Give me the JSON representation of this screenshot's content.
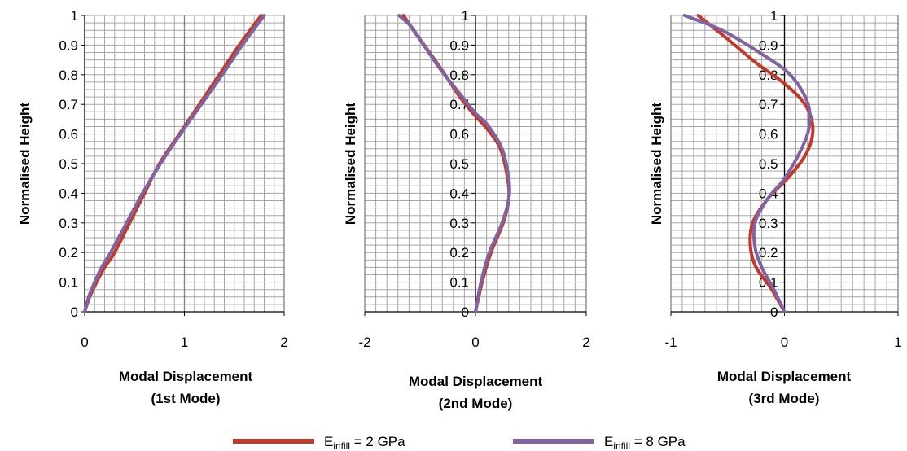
{
  "chart_data": [
    {
      "type": "line",
      "ylabel": "Normalised Height",
      "xlabel_line1": "Modal Displacement",
      "xlabel_line2": "(1st Mode)",
      "xlim": [
        0,
        2
      ],
      "ylim": [
        0,
        1
      ],
      "x_ticks": [
        "0",
        "1",
        "2"
      ],
      "y_ticks": [
        "0",
        "0.1",
        "0.2",
        "0.3",
        "0.4",
        "0.5",
        "0.6",
        "0.7",
        "0.8",
        "0.9",
        "1"
      ],
      "series": [
        {
          "name": "E_infill = 2 GPa",
          "color": "#c0392b",
          "points": [
            [
              0,
              0
            ],
            [
              0.05,
              0.05
            ],
            [
              0.12,
              0.1
            ],
            [
              0.2,
              0.15
            ],
            [
              0.3,
              0.2
            ],
            [
              0.45,
              0.3
            ],
            [
              0.6,
              0.4
            ],
            [
              0.75,
              0.5
            ],
            [
              0.95,
              0.6
            ],
            [
              1.15,
              0.7
            ],
            [
              1.35,
              0.8
            ],
            [
              1.55,
              0.9
            ],
            [
              1.77,
              1.0
            ]
          ]
        },
        {
          "name": "E_infill = 8 GPa",
          "color": "#8064a2",
          "points": [
            [
              0,
              0
            ],
            [
              0.04,
              0.05
            ],
            [
              0.1,
              0.1
            ],
            [
              0.17,
              0.15
            ],
            [
              0.26,
              0.2
            ],
            [
              0.42,
              0.3
            ],
            [
              0.58,
              0.4
            ],
            [
              0.76,
              0.5
            ],
            [
              0.96,
              0.6
            ],
            [
              1.17,
              0.7
            ],
            [
              1.38,
              0.8
            ],
            [
              1.58,
              0.9
            ],
            [
              1.8,
              1.0
            ]
          ]
        }
      ]
    },
    {
      "type": "line",
      "ylabel": "Normalised Height",
      "xlabel_line1": "Modal Displacement",
      "xlabel_line2": "(2nd Mode)",
      "xlim": [
        -2,
        2
      ],
      "ylim": [
        0,
        1
      ],
      "x_ticks": [
        "-2",
        "0",
        "2"
      ],
      "y_ticks": [
        "0",
        "0.1",
        "0.2",
        "0.3",
        "0.4",
        "0.5",
        "0.6",
        "0.7",
        "0.8",
        "0.9",
        "1"
      ],
      "series": [
        {
          "name": "E_infill = 2 GPa",
          "color": "#c0392b",
          "points": [
            [
              0,
              0
            ],
            [
              0.12,
              0.1
            ],
            [
              0.28,
              0.2
            ],
            [
              0.5,
              0.3
            ],
            [
              0.6,
              0.38
            ],
            [
              0.58,
              0.45
            ],
            [
              0.45,
              0.55
            ],
            [
              0.2,
              0.62
            ],
            [
              0,
              0.66
            ],
            [
              -0.3,
              0.73
            ],
            [
              -0.55,
              0.8
            ],
            [
              -0.85,
              0.88
            ],
            [
              -1.12,
              0.95
            ],
            [
              -1.3,
              1.0
            ]
          ]
        },
        {
          "name": "E_infill = 8 GPa",
          "color": "#8064a2",
          "points": [
            [
              0,
              0
            ],
            [
              0.1,
              0.1
            ],
            [
              0.25,
              0.2
            ],
            [
              0.48,
              0.3
            ],
            [
              0.6,
              0.38
            ],
            [
              0.6,
              0.45
            ],
            [
              0.48,
              0.55
            ],
            [
              0.22,
              0.63
            ],
            [
              0,
              0.67
            ],
            [
              -0.3,
              0.74
            ],
            [
              -0.6,
              0.81
            ],
            [
              -0.9,
              0.89
            ],
            [
              -1.15,
              0.96
            ],
            [
              -1.38,
              1.0
            ]
          ]
        }
      ]
    },
    {
      "type": "line",
      "ylabel": "Normalised Height",
      "xlabel_line1": "Modal Displacement",
      "xlabel_line2": "(3rd Mode)",
      "xlim": [
        -1,
        1
      ],
      "ylim": [
        0,
        1
      ],
      "x_ticks": [
        "-1",
        "0",
        "1"
      ],
      "y_ticks": [
        "0",
        "0.1",
        "0.2",
        "0.3",
        "0.4",
        "0.5",
        "0.6",
        "0.7",
        "0.8",
        "0.9",
        "1"
      ],
      "series": [
        {
          "name": "E_infill = 2 GPa",
          "color": "#c0392b",
          "points": [
            [
              0,
              0
            ],
            [
              -0.12,
              0.08
            ],
            [
              -0.25,
              0.15
            ],
            [
              -0.3,
              0.22
            ],
            [
              -0.28,
              0.3
            ],
            [
              -0.15,
              0.38
            ],
            [
              0.05,
              0.46
            ],
            [
              0.2,
              0.54
            ],
            [
              0.25,
              0.62
            ],
            [
              0.18,
              0.7
            ],
            [
              0,
              0.77
            ],
            [
              -0.25,
              0.84
            ],
            [
              -0.5,
              0.92
            ],
            [
              -0.76,
              1.0
            ]
          ]
        },
        {
          "name": "E_infill = 8 GPa",
          "color": "#8064a2",
          "points": [
            [
              0,
              0
            ],
            [
              -0.1,
              0.08
            ],
            [
              -0.2,
              0.15
            ],
            [
              -0.26,
              0.22
            ],
            [
              -0.26,
              0.3
            ],
            [
              -0.15,
              0.38
            ],
            [
              0,
              0.45
            ],
            [
              0.15,
              0.55
            ],
            [
              0.22,
              0.63
            ],
            [
              0.2,
              0.71
            ],
            [
              0.05,
              0.8
            ],
            [
              -0.2,
              0.87
            ],
            [
              -0.55,
              0.95
            ],
            [
              -0.88,
              1.0
            ]
          ]
        }
      ]
    }
  ],
  "legend": [
    {
      "label_main": "E",
      "label_sub": "infill",
      "label_rest": " = 2 GPa",
      "color": "#c0392b"
    },
    {
      "label_main": "E",
      "label_sub": "infill",
      "label_rest": " = 8 GPa",
      "color": "#8064a2"
    }
  ]
}
